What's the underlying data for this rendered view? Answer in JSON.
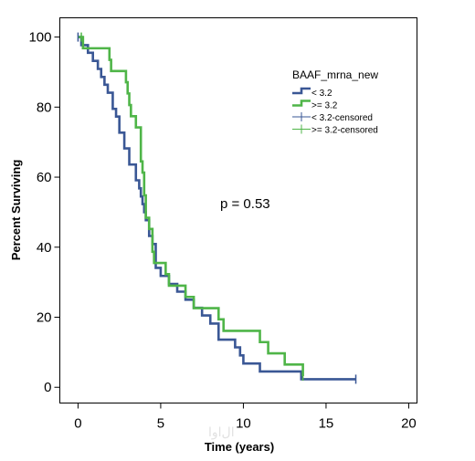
{
  "chart_data": {
    "type": "line",
    "step": true,
    "xlabel": "Time (years)",
    "ylabel": "Percent Surviving",
    "xlim": [
      -1.1,
      20.5
    ],
    "ylim": [
      -4.5,
      105.5
    ],
    "xticks": [
      0,
      5,
      10,
      15,
      20
    ],
    "yticks": [
      0,
      20,
      40,
      60,
      80,
      100
    ],
    "grid": false,
    "legend": {
      "title": "BAAF_mrna_new",
      "placement": "top-right",
      "entries": [
        "< 3.2",
        ">=  3.2",
        "< 3.2-censored",
        ">=  3.2-censored"
      ]
    },
    "annotation": "p = 0.53",
    "watermark": "ا‌ل‌ا‌و‌ا",
    "series": [
      {
        "name": "< 3.2",
        "color": "#3a5795",
        "x": [
          0,
          0.2,
          0.6,
          0.9,
          1.2,
          1.4,
          1.6,
          1.8,
          2.1,
          2.3,
          2.5,
          2.8,
          3.1,
          3.5,
          3.7,
          3.8,
          3.9,
          4.0,
          4.1,
          4.3,
          4.5,
          4.7,
          5.0,
          5.5,
          6.0,
          6.5,
          7.0,
          7.5,
          8.0,
          8.5,
          9.5,
          9.8,
          10.0,
          11.0,
          12.5,
          13.5,
          16.8
        ],
        "y": [
          100,
          97.7,
          95.5,
          93.2,
          90.9,
          88.6,
          86.4,
          84.1,
          79.5,
          77.3,
          72.7,
          68.2,
          63.6,
          59.1,
          56.8,
          54.5,
          52.3,
          50,
          47.7,
          43.2,
          40.9,
          34.1,
          31.8,
          29.5,
          27.3,
          25,
          22.7,
          20.5,
          18.2,
          13.6,
          11.4,
          9.1,
          6.8,
          4.5,
          4.5,
          2.3,
          2.3
        ]
      },
      {
        "name": ">=  3.2",
        "color": "#4fb548",
        "x": [
          0,
          0.3,
          0.6,
          1.0,
          1.2,
          1.9,
          2.0,
          2.4,
          2.9,
          3.0,
          3.1,
          3.2,
          3.5,
          3.8,
          3.9,
          4.0,
          4.1,
          4.3,
          4.5,
          4.6,
          4.7,
          5.3,
          5.5,
          6.0,
          6.5,
          7.0,
          8.5,
          8.8,
          10.0,
          11.0,
          11.5,
          12.0,
          12.5,
          13.6
        ],
        "y": [
          100,
          96.8,
          96.8,
          96.8,
          96.8,
          93.5,
          90.3,
          90.3,
          87.1,
          83.9,
          80.6,
          77.4,
          74.2,
          64.5,
          61.3,
          54.8,
          48.4,
          45.2,
          38.7,
          35.5,
          35.5,
          32.3,
          29,
          29,
          25.8,
          22.6,
          19.4,
          16.1,
          16.1,
          12.9,
          9.7,
          9.7,
          6.5,
          3.2
        ]
      }
    ],
    "censored": [
      {
        "name": "< 3.2-censored",
        "color": "#3a5795",
        "x": [
          0,
          16.8
        ],
        "y": [
          100,
          2.3
        ]
      },
      {
        "name": ">=  3.2-censored",
        "color": "#4fb548",
        "x": [
          0.2,
          13.6
        ],
        "y": [
          100,
          3.2
        ]
      }
    ]
  }
}
